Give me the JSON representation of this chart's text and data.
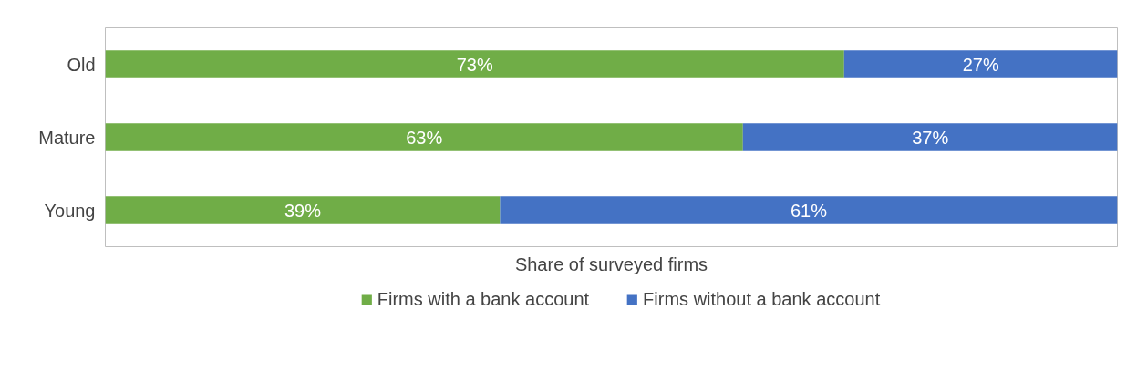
{
  "chart_data": {
    "type": "bar",
    "orientation": "horizontal",
    "stacked": true,
    "categories": [
      "Old",
      "Mature",
      "Young"
    ],
    "series": [
      {
        "name": "Firms with a bank account",
        "color": "#70ad47",
        "values": [
          73,
          63,
          39
        ],
        "value_labels": [
          "73%",
          "63%",
          "39%"
        ]
      },
      {
        "name": "Firms without a bank account",
        "color": "#4472c4",
        "values": [
          27,
          37,
          61
        ],
        "value_labels": [
          "27%",
          "37%",
          "61%"
        ]
      }
    ],
    "xlim": [
      0,
      100
    ],
    "xlabel": "Share of surveyed firms",
    "tick_labels": "y",
    "grid": false,
    "legend": "bottom"
  }
}
